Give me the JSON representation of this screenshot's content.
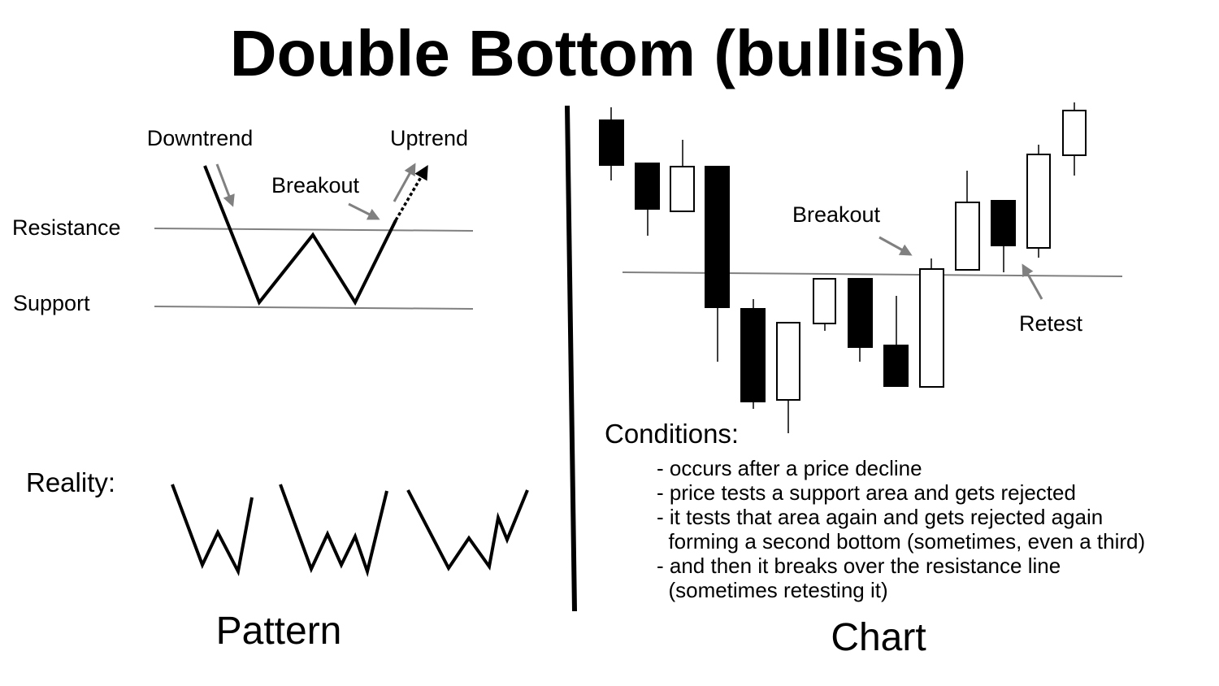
{
  "title": "Double Bottom (bullish)",
  "pattern": {
    "section_label": "Pattern",
    "labels": {
      "downtrend": "Downtrend",
      "uptrend": "Uptrend",
      "breakout": "Breakout",
      "resistance": "Resistance",
      "support": "Support"
    },
    "reality_label": "Reality:"
  },
  "chart": {
    "section_label": "Chart",
    "breakout_label": "Breakout",
    "retest_label": "Retest"
  },
  "conditions": {
    "heading": "Conditions:",
    "lines": [
      "- occurs after a price decline",
      "- price tests a support area and gets rejected",
      "- it tests that area again and gets rejected again",
      "  forming a second bottom (sometimes, even a third)",
      "- and then it breaks over the resistance line",
      "  (sometimes retesting it)"
    ]
  },
  "colors": {
    "ink": "#000000",
    "guide_line": "#808080",
    "arrow": "#808080",
    "background": "#ffffff"
  }
}
